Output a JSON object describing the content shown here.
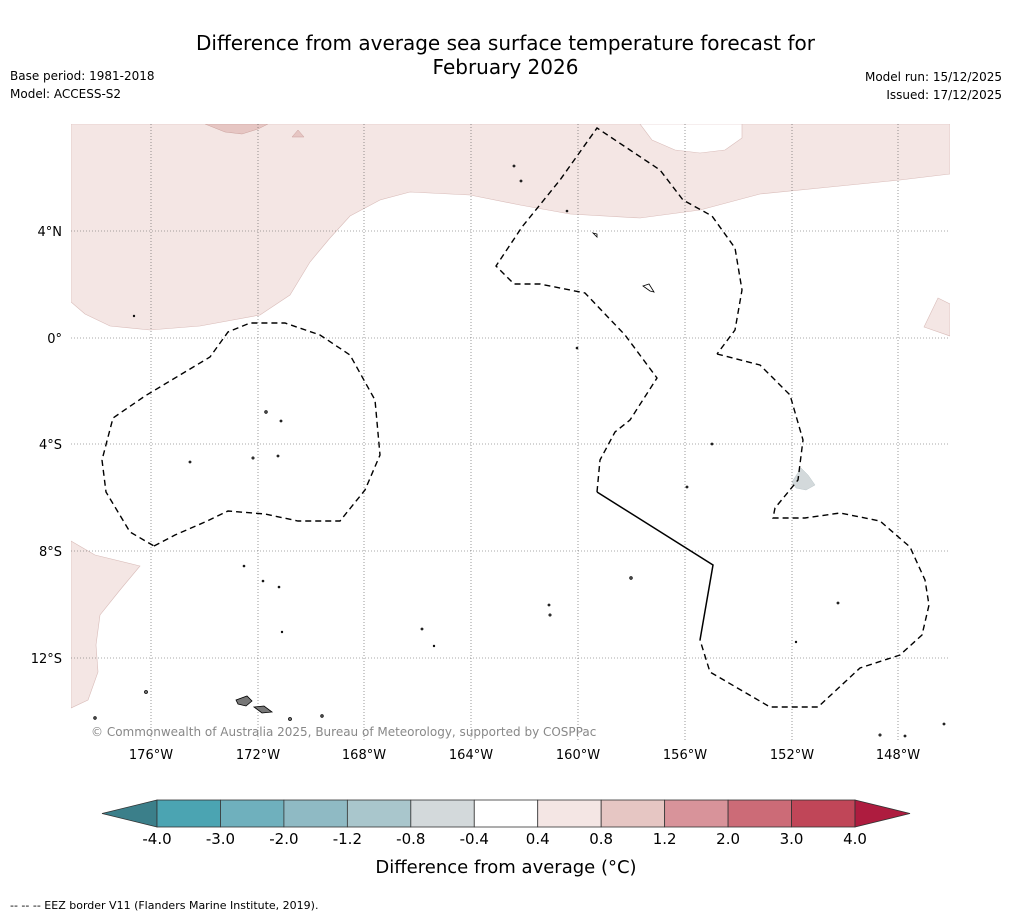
{
  "header": {
    "title_line1": "Difference from average sea surface temperature forecast for",
    "title_line2": "February 2026",
    "base_period": "Base period: 1981-2018",
    "model": "Model: ACCESS-S2",
    "model_run": "Model run: 15/12/2025",
    "issued": "Issued: 17/12/2025"
  },
  "map": {
    "region": "Central Pacific",
    "lat_labels": [
      "4°N",
      "0°",
      "4°S",
      "8°S",
      "12°S"
    ],
    "lon_labels": [
      "176°W",
      "172°W",
      "168°W",
      "164°W",
      "160°W",
      "156°W",
      "152°W",
      "148°W"
    ],
    "copyright": "© Commonwealth of Australia 2025, Bureau of Meteorology, supported by COSPPac",
    "anomaly_colors": {
      "0.4 to 0.8": "#f4e6e4",
      "0.8 to 1.2": "#e6c6c3",
      "-0.8 to -0.4": "#d3d9db"
    }
  },
  "colorbar": {
    "ticks": [
      "-4.0",
      "-3.0",
      "-2.0",
      "-1.2",
      "-0.8",
      "-0.4",
      "0.4",
      "0.8",
      "1.2",
      "2.0",
      "3.0",
      "4.0"
    ],
    "colors": [
      "#4ba4b2",
      "#6fb0bd",
      "#8fbac4",
      "#a9c6cc",
      "#d3d9db",
      "#ffffff",
      "#f4e6e4",
      "#e6c6c3",
      "#d8939a",
      "#cc6b77",
      "#c04658"
    ],
    "under_color": "#3b7f8a",
    "over_color": "#ae1c3f",
    "label": "Difference from average (°C)"
  },
  "footer": {
    "eez_note": "--  --  -- EEZ border V11 (Flanders Marine Institute, 2019)."
  }
}
